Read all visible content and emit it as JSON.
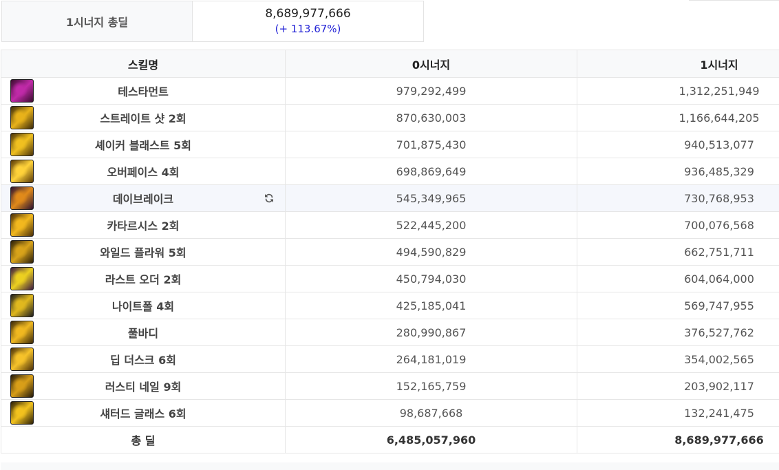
{
  "summary": {
    "label": "1시너지 총딜",
    "total": "8,689,977,666",
    "percent": "(+ 113.67%)"
  },
  "table": {
    "headers": {
      "skill": "스킬명",
      "col0": "0시너지",
      "col1": "1시너지"
    },
    "rows": [
      {
        "name": "테스타먼트",
        "v0": "979,292,499",
        "v1": "1,312,251,949",
        "icon": "testament-icon",
        "colors": [
          "#c02aa8",
          "#3a0c2e"
        ]
      },
      {
        "name": "스트레이트 샷 2회",
        "v0": "870,630,003",
        "v1": "1,166,644,205",
        "icon": "straight-shot-icon",
        "colors": [
          "#e8b21a",
          "#3a2a0a"
        ]
      },
      {
        "name": "셰이커 블래스트 5회",
        "v0": "701,875,430",
        "v1": "940,513,077",
        "icon": "shaker-blast-icon",
        "colors": [
          "#f0c020",
          "#4a3208"
        ]
      },
      {
        "name": "오버페이스 4회",
        "v0": "698,869,649",
        "v1": "936,485,329",
        "icon": "overpace-icon",
        "colors": [
          "#ffd23a",
          "#5a3a06"
        ]
      },
      {
        "name": "데이브레이크",
        "v0": "545,349,965",
        "v1": "730,768,953",
        "icon": "daybreak-icon",
        "colors": [
          "#e08a1a",
          "#2a1030"
        ]
      },
      {
        "name": "카타르시스 2회",
        "v0": "522,445,200",
        "v1": "700,076,568",
        "icon": "catharsis-icon",
        "colors": [
          "#f2b81e",
          "#4a2e06"
        ]
      },
      {
        "name": "와일드 플라워 5회",
        "v0": "494,590,829",
        "v1": "662,751,711",
        "icon": "wild-flower-icon",
        "colors": [
          "#d8a31a",
          "#2a1e08"
        ]
      },
      {
        "name": "라스트 오더 2회",
        "v0": "450,794,030",
        "v1": "604,064,000",
        "icon": "last-order-icon",
        "colors": [
          "#ecd020",
          "#3a1a40"
        ]
      },
      {
        "name": "나이트폴 4회",
        "v0": "425,185,041",
        "v1": "569,747,955",
        "icon": "nightfall-icon",
        "colors": [
          "#e0b81e",
          "#1c1c1c"
        ]
      },
      {
        "name": "풀바디",
        "v0": "280,990,867",
        "v1": "376,527,762",
        "icon": "full-body-icon",
        "colors": [
          "#f0b820",
          "#3a2808"
        ]
      },
      {
        "name": "딥 더스크 6회",
        "v0": "264,181,019",
        "v1": "354,002,565",
        "icon": "deep-dusk-icon",
        "colors": [
          "#f6c22a",
          "#4a3008"
        ]
      },
      {
        "name": "러스티 네일 9회",
        "v0": "152,165,759",
        "v1": "203,902,117",
        "icon": "rusty-nail-icon",
        "colors": [
          "#d89e18",
          "#221808"
        ]
      },
      {
        "name": "섀터드 글래스 6회",
        "v0": "98,687,668",
        "v1": "132,241,475",
        "icon": "shattered-glass-icon",
        "colors": [
          "#f2c21e",
          "#2a1e06"
        ]
      }
    ],
    "highlight_index": 4,
    "total": {
      "label": "총 딜",
      "v0": "6,485,057,960",
      "v1": "8,689,977,666"
    }
  }
}
